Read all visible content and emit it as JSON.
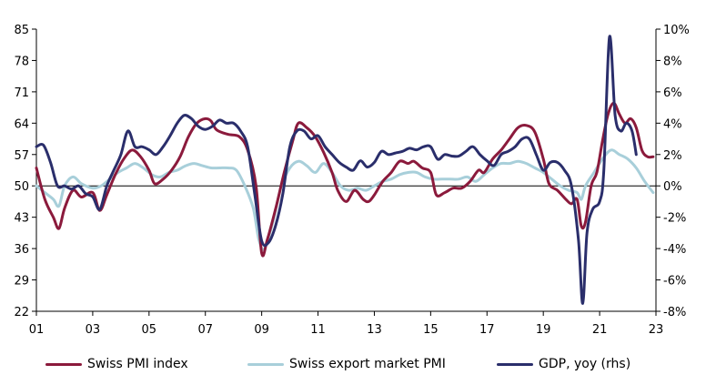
{
  "chart_data": {
    "type": "line",
    "title": "",
    "xlabel": "",
    "ylabel": "",
    "x_tick_labels": [
      "01",
      "03",
      "05",
      "07",
      "09",
      "11",
      "13",
      "15",
      "17",
      "19",
      "21",
      "23"
    ],
    "x_ticks": [
      2001,
      2003,
      2005,
      2007,
      2009,
      2011,
      2013,
      2015,
      2017,
      2019,
      2021,
      2023
    ],
    "xlim": [
      2001,
      2023
    ],
    "ylim_left": [
      22,
      85
    ],
    "y_ticks_left": [
      22,
      29,
      36,
      43,
      50,
      57,
      64,
      71,
      78,
      85
    ],
    "ylim_right": [
      -8,
      10
    ],
    "y_ticks_right": [
      -8,
      -6,
      -4,
      -2,
      0,
      2,
      4,
      6,
      8,
      10
    ],
    "y_tick_labels_right": [
      "-8%",
      "-6%",
      "-4%",
      "-2%",
      "0%",
      "2%",
      "4%",
      "6%",
      "8%",
      "10%"
    ],
    "grid": false,
    "legend_position": "bottom",
    "series": [
      {
        "name": "Swiss PMI index",
        "axis": "left",
        "color": "#8b1a3c",
        "points": [
          [
            2001.0,
            54
          ],
          [
            2001.3,
            47
          ],
          [
            2001.6,
            43
          ],
          [
            2001.8,
            40.5
          ],
          [
            2002.0,
            45
          ],
          [
            2002.3,
            49
          ],
          [
            2002.6,
            47.5
          ],
          [
            2003.0,
            48.5
          ],
          [
            2003.25,
            44.5
          ],
          [
            2003.5,
            48
          ],
          [
            2003.8,
            52.5
          ],
          [
            2004.1,
            56
          ],
          [
            2004.4,
            58
          ],
          [
            2004.7,
            56.5
          ],
          [
            2005.0,
            53.5
          ],
          [
            2005.2,
            50.5
          ],
          [
            2005.5,
            51.5
          ],
          [
            2005.8,
            53.5
          ],
          [
            2006.1,
            56.5
          ],
          [
            2006.4,
            61
          ],
          [
            2006.7,
            64
          ],
          [
            2007.0,
            65
          ],
          [
            2007.2,
            64.5
          ],
          [
            2007.4,
            62.5
          ],
          [
            2007.8,
            61.5
          ],
          [
            2008.2,
            61
          ],
          [
            2008.5,
            58
          ],
          [
            2008.8,
            50
          ],
          [
            2009.0,
            35
          ],
          [
            2009.2,
            38
          ],
          [
            2009.5,
            45
          ],
          [
            2009.8,
            53
          ],
          [
            2010.1,
            60
          ],
          [
            2010.3,
            64
          ],
          [
            2010.6,
            63
          ],
          [
            2010.9,
            61
          ],
          [
            2011.2,
            57.5
          ],
          [
            2011.5,
            53
          ],
          [
            2011.7,
            49
          ],
          [
            2012.0,
            46.5
          ],
          [
            2012.3,
            49
          ],
          [
            2012.6,
            47
          ],
          [
            2012.8,
            46.5
          ],
          [
            2013.0,
            48
          ],
          [
            2013.3,
            51
          ],
          [
            2013.6,
            53
          ],
          [
            2013.9,
            55.5
          ],
          [
            2014.2,
            55
          ],
          [
            2014.4,
            55.5
          ],
          [
            2014.7,
            54
          ],
          [
            2015.0,
            53
          ],
          [
            2015.2,
            48
          ],
          [
            2015.5,
            48.5
          ],
          [
            2015.8,
            49.5
          ],
          [
            2016.1,
            49.5
          ],
          [
            2016.4,
            51
          ],
          [
            2016.7,
            53.5
          ],
          [
            2016.9,
            53
          ],
          [
            2017.2,
            56
          ],
          [
            2017.5,
            58
          ],
          [
            2017.8,
            60.5
          ],
          [
            2018.1,
            63
          ],
          [
            2018.4,
            63.5
          ],
          [
            2018.7,
            62
          ],
          [
            2019.0,
            56
          ],
          [
            2019.2,
            50.5
          ],
          [
            2019.5,
            49
          ],
          [
            2019.8,
            47
          ],
          [
            2020.0,
            46
          ],
          [
            2020.2,
            47
          ],
          [
            2020.35,
            41
          ],
          [
            2020.5,
            42
          ],
          [
            2020.7,
            50
          ],
          [
            2020.9,
            53
          ],
          [
            2021.1,
            60
          ],
          [
            2021.3,
            66
          ],
          [
            2021.5,
            68.5
          ],
          [
            2021.7,
            66
          ],
          [
            2021.9,
            64
          ],
          [
            2022.1,
            65
          ],
          [
            2022.3,
            63
          ],
          [
            2022.5,
            58
          ],
          [
            2022.7,
            56.5
          ],
          [
            2022.9,
            56.5
          ]
        ]
      },
      {
        "name": "Swiss export market PMI",
        "axis": "left",
        "color": "#a8cfda",
        "points": [
          [
            2001.0,
            50
          ],
          [
            2001.3,
            48.5
          ],
          [
            2001.6,
            47
          ],
          [
            2001.8,
            45.5
          ],
          [
            2002.0,
            50
          ],
          [
            2002.3,
            52
          ],
          [
            2002.6,
            50.5
          ],
          [
            2003.0,
            49.5
          ],
          [
            2003.3,
            50
          ],
          [
            2003.6,
            51.5
          ],
          [
            2003.9,
            53
          ],
          [
            2004.2,
            54
          ],
          [
            2004.5,
            55
          ],
          [
            2004.8,
            54
          ],
          [
            2005.1,
            52.5
          ],
          [
            2005.4,
            52
          ],
          [
            2005.7,
            53
          ],
          [
            2006.0,
            53.5
          ],
          [
            2006.3,
            54.5
          ],
          [
            2006.6,
            55
          ],
          [
            2006.9,
            54.5
          ],
          [
            2007.2,
            54
          ],
          [
            2007.5,
            54
          ],
          [
            2007.8,
            54
          ],
          [
            2008.1,
            53.5
          ],
          [
            2008.4,
            50
          ],
          [
            2008.7,
            45
          ],
          [
            2008.9,
            38
          ],
          [
            2009.1,
            36
          ],
          [
            2009.4,
            42
          ],
          [
            2009.7,
            50
          ],
          [
            2010.0,
            54
          ],
          [
            2010.3,
            55.5
          ],
          [
            2010.6,
            54.5
          ],
          [
            2010.9,
            53
          ],
          [
            2011.2,
            55
          ],
          [
            2011.5,
            53
          ],
          [
            2011.8,
            50
          ],
          [
            2012.1,
            49
          ],
          [
            2012.4,
            49.5
          ],
          [
            2012.7,
            49
          ],
          [
            2013.0,
            50
          ],
          [
            2013.3,
            51
          ],
          [
            2013.6,
            51.5
          ],
          [
            2013.9,
            52.5
          ],
          [
            2014.2,
            53
          ],
          [
            2014.5,
            53
          ],
          [
            2014.8,
            52
          ],
          [
            2015.1,
            51.5
          ],
          [
            2015.4,
            51.5
          ],
          [
            2015.7,
            51.5
          ],
          [
            2016.0,
            51.5
          ],
          [
            2016.3,
            52
          ],
          [
            2016.6,
            51
          ],
          [
            2016.9,
            52.5
          ],
          [
            2017.2,
            54
          ],
          [
            2017.5,
            55
          ],
          [
            2017.8,
            55
          ],
          [
            2018.1,
            55.5
          ],
          [
            2018.4,
            55
          ],
          [
            2018.7,
            54
          ],
          [
            2019.0,
            53
          ],
          [
            2019.3,
            51.5
          ],
          [
            2019.6,
            50
          ],
          [
            2019.9,
            49
          ],
          [
            2020.2,
            48.5
          ],
          [
            2020.35,
            47
          ],
          [
            2020.5,
            50
          ],
          [
            2020.8,
            53
          ],
          [
            2021.1,
            56
          ],
          [
            2021.4,
            58
          ],
          [
            2021.7,
            57
          ],
          [
            2022.0,
            56
          ],
          [
            2022.3,
            54
          ],
          [
            2022.6,
            51
          ],
          [
            2022.9,
            48.5
          ]
        ]
      },
      {
        "name": "GDP, yoy (rhs)",
        "axis": "right",
        "color": "#2a2e6b",
        "points": [
          [
            2001.0,
            2.5
          ],
          [
            2001.25,
            2.6
          ],
          [
            2001.5,
            1.5
          ],
          [
            2001.75,
            0
          ],
          [
            2002.0,
            0
          ],
          [
            2002.25,
            -0.2
          ],
          [
            2002.5,
            0
          ],
          [
            2002.75,
            -0.5
          ],
          [
            2003.0,
            -0.7
          ],
          [
            2003.25,
            -1.5
          ],
          [
            2003.5,
            0
          ],
          [
            2003.75,
            1
          ],
          [
            2004.0,
            2
          ],
          [
            2004.25,
            3.5
          ],
          [
            2004.5,
            2.5
          ],
          [
            2004.75,
            2.5
          ],
          [
            2005.0,
            2.3
          ],
          [
            2005.25,
            2
          ],
          [
            2005.5,
            2.5
          ],
          [
            2005.75,
            3.2
          ],
          [
            2006.0,
            4
          ],
          [
            2006.25,
            4.5
          ],
          [
            2006.5,
            4.3
          ],
          [
            2006.75,
            3.8
          ],
          [
            2007.0,
            3.6
          ],
          [
            2007.25,
            3.8
          ],
          [
            2007.5,
            4.2
          ],
          [
            2007.75,
            4
          ],
          [
            2008.0,
            4
          ],
          [
            2008.25,
            3.5
          ],
          [
            2008.5,
            2.5
          ],
          [
            2008.75,
            -0.5
          ],
          [
            2009.0,
            -3.5
          ],
          [
            2009.25,
            -3.6
          ],
          [
            2009.5,
            -2.5
          ],
          [
            2009.75,
            -0.5
          ],
          [
            2010.0,
            2.5
          ],
          [
            2010.25,
            3.5
          ],
          [
            2010.5,
            3.5
          ],
          [
            2010.75,
            3
          ],
          [
            2011.0,
            3.2
          ],
          [
            2011.25,
            2.5
          ],
          [
            2011.5,
            2
          ],
          [
            2011.75,
            1.5
          ],
          [
            2012.0,
            1.2
          ],
          [
            2012.25,
            1
          ],
          [
            2012.5,
            1.6
          ],
          [
            2012.75,
            1.2
          ],
          [
            2013.0,
            1.5
          ],
          [
            2013.25,
            2.2
          ],
          [
            2013.5,
            2
          ],
          [
            2013.75,
            2.1
          ],
          [
            2014.0,
            2.2
          ],
          [
            2014.25,
            2.4
          ],
          [
            2014.5,
            2.3
          ],
          [
            2014.75,
            2.5
          ],
          [
            2015.0,
            2.5
          ],
          [
            2015.25,
            1.7
          ],
          [
            2015.5,
            2
          ],
          [
            2015.75,
            1.9
          ],
          [
            2016.0,
            1.9
          ],
          [
            2016.25,
            2.2
          ],
          [
            2016.5,
            2.5
          ],
          [
            2016.75,
            2
          ],
          [
            2017.0,
            1.6
          ],
          [
            2017.25,
            1.3
          ],
          [
            2017.5,
            2
          ],
          [
            2017.75,
            2.2
          ],
          [
            2018.0,
            2.5
          ],
          [
            2018.25,
            3
          ],
          [
            2018.5,
            3
          ],
          [
            2018.75,
            2
          ],
          [
            2019.0,
            1
          ],
          [
            2019.25,
            1.5
          ],
          [
            2019.5,
            1.5
          ],
          [
            2019.75,
            1
          ],
          [
            2020.0,
            0
          ],
          [
            2020.25,
            -3.5
          ],
          [
            2020.4,
            -7.5
          ],
          [
            2020.55,
            -3
          ],
          [
            2020.75,
            -1.5
          ],
          [
            2021.0,
            -1
          ],
          [
            2021.15,
            1
          ],
          [
            2021.35,
            9.5
          ],
          [
            2021.55,
            4.5
          ],
          [
            2021.75,
            3.5
          ],
          [
            2021.95,
            4
          ],
          [
            2022.15,
            3.5
          ],
          [
            2022.3,
            2
          ]
        ]
      }
    ]
  }
}
